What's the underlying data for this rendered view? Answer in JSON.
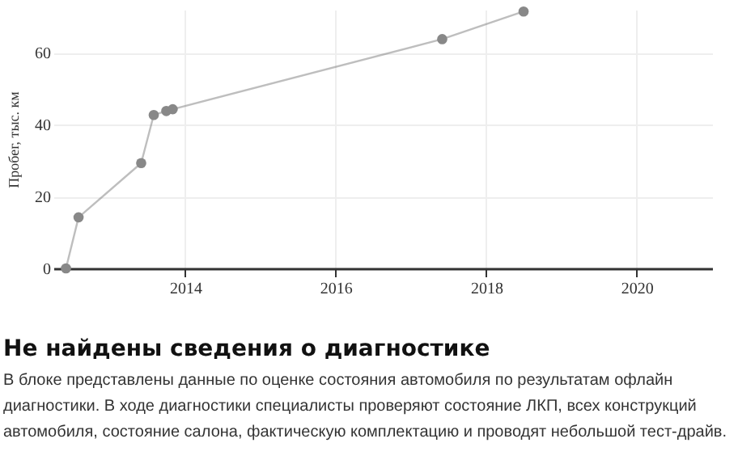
{
  "chart_data": {
    "type": "line",
    "ylabel": "Пробег, тыс. км",
    "x": [
      "2012-06",
      "2012-08",
      "2013-06",
      "2013-08",
      "2013-10",
      "2013-11",
      "2017-06",
      "2018-07"
    ],
    "series": [
      {
        "color": "#888888",
        "values": [
          0,
          14.2,
          29.3,
          42.7,
          43.8,
          44.3,
          63.8,
          71.5
        ]
      }
    ],
    "xlim": [
      "2012-04",
      "2021-01"
    ],
    "xticks": [
      {
        "value": "2014",
        "label": "2014"
      },
      {
        "value": "2016",
        "label": "2016"
      },
      {
        "value": "2018",
        "label": "2018"
      },
      {
        "value": "2020",
        "label": "2020"
      }
    ],
    "ylim": [
      0,
      72
    ],
    "yticks": [
      0,
      20,
      40,
      60
    ],
    "grid": true,
    "marker": "circle",
    "annotations": [
      "Не найдены сведения о диагностике",
      "В блоке представлены данные по оценке состояния автомобиля по результатам офлайн диагностики. В ходе диагностики специалисты проверяют состояние ЛКП, всех конструкций автомобиля, состояние салона, фактическую комплектацию и проводят небольшой тест-драйв."
    ]
  }
}
